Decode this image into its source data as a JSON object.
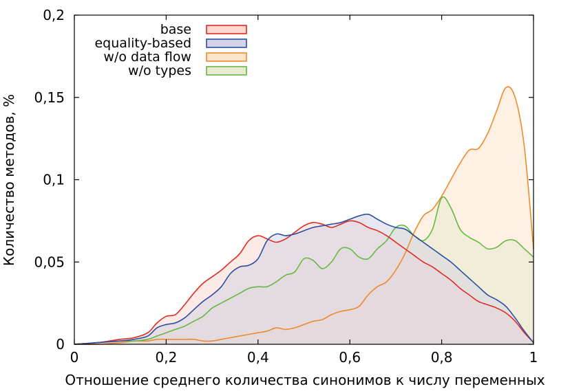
{
  "chart_data": {
    "type": "area",
    "title": "",
    "xlabel": "Отношение среднего количества синонимов к числу переменных",
    "ylabel": "Количество методов, %",
    "xlim": [
      0,
      1
    ],
    "ylim": [
      0,
      0.2
    ],
    "x_ticks": [
      "0",
      "0,2",
      "0,4",
      "0,6",
      "0,8",
      "1"
    ],
    "y_ticks": [
      "0",
      "0,05",
      "0,1",
      "0,15",
      "0,2"
    ],
    "legend_position": "top-left",
    "grid": false,
    "x": [
      0,
      0.05,
      0.1,
      0.13,
      0.16,
      0.18,
      0.2,
      0.22,
      0.24,
      0.26,
      0.28,
      0.3,
      0.32,
      0.34,
      0.36,
      0.38,
      0.4,
      0.42,
      0.44,
      0.46,
      0.48,
      0.5,
      0.52,
      0.54,
      0.56,
      0.58,
      0.6,
      0.62,
      0.64,
      0.66,
      0.68,
      0.7,
      0.72,
      0.74,
      0.76,
      0.78,
      0.8,
      0.82,
      0.84,
      0.86,
      0.88,
      0.9,
      0.92,
      0.94,
      0.96,
      0.98,
      1.0
    ],
    "series": [
      {
        "name": "base",
        "color": "#e02a23",
        "fill": "#fbd7cf",
        "values": [
          0,
          0.001,
          0.003,
          0.004,
          0.007,
          0.013,
          0.017,
          0.018,
          0.024,
          0.031,
          0.037,
          0.041,
          0.045,
          0.05,
          0.055,
          0.063,
          0.066,
          0.064,
          0.062,
          0.064,
          0.068,
          0.072,
          0.074,
          0.073,
          0.071,
          0.073,
          0.075,
          0.074,
          0.071,
          0.069,
          0.066,
          0.062,
          0.058,
          0.054,
          0.05,
          0.047,
          0.043,
          0.039,
          0.034,
          0.03,
          0.026,
          0.024,
          0.022,
          0.019,
          0.014,
          0.007,
          0.001
        ]
      },
      {
        "name": "equality-based",
        "color": "#2b4ea0",
        "fill": "#d6d3e6",
        "values": [
          0,
          0.001,
          0.002,
          0.003,
          0.005,
          0.01,
          0.012,
          0.013,
          0.016,
          0.021,
          0.026,
          0.03,
          0.035,
          0.043,
          0.047,
          0.048,
          0.052,
          0.063,
          0.067,
          0.066,
          0.067,
          0.069,
          0.071,
          0.072,
          0.073,
          0.074,
          0.076,
          0.078,
          0.079,
          0.076,
          0.073,
          0.071,
          0.07,
          0.066,
          0.062,
          0.058,
          0.054,
          0.05,
          0.045,
          0.04,
          0.035,
          0.03,
          0.027,
          0.023,
          0.016,
          0.008,
          0.001
        ]
      },
      {
        "name": "w/o data flow",
        "color": "#ef8a2b",
        "fill": "#fde4cc",
        "values": [
          0,
          0,
          0.001,
          0.002,
          0.002,
          0.003,
          0.003,
          0.003,
          0.003,
          0.003,
          0.002,
          0.002,
          0.003,
          0.004,
          0.005,
          0.006,
          0.007,
          0.008,
          0.01,
          0.009,
          0.01,
          0.012,
          0.014,
          0.015,
          0.018,
          0.02,
          0.021,
          0.023,
          0.03,
          0.035,
          0.038,
          0.045,
          0.055,
          0.068,
          0.078,
          0.082,
          0.09,
          0.1,
          0.11,
          0.118,
          0.119,
          0.128,
          0.142,
          0.156,
          0.15,
          0.12,
          0.058
        ]
      },
      {
        "name": "w/o types",
        "color": "#63b941",
        "fill": "#e8ebcf",
        "values": [
          0,
          0.001,
          0.002,
          0.002,
          0.003,
          0.005,
          0.007,
          0.009,
          0.011,
          0.014,
          0.017,
          0.022,
          0.025,
          0.028,
          0.031,
          0.034,
          0.035,
          0.035,
          0.038,
          0.042,
          0.044,
          0.052,
          0.051,
          0.046,
          0.05,
          0.058,
          0.058,
          0.053,
          0.052,
          0.058,
          0.063,
          0.071,
          0.072,
          0.066,
          0.063,
          0.07,
          0.089,
          0.083,
          0.07,
          0.065,
          0.062,
          0.058,
          0.059,
          0.063,
          0.063,
          0.058,
          0.053
        ]
      }
    ]
  }
}
